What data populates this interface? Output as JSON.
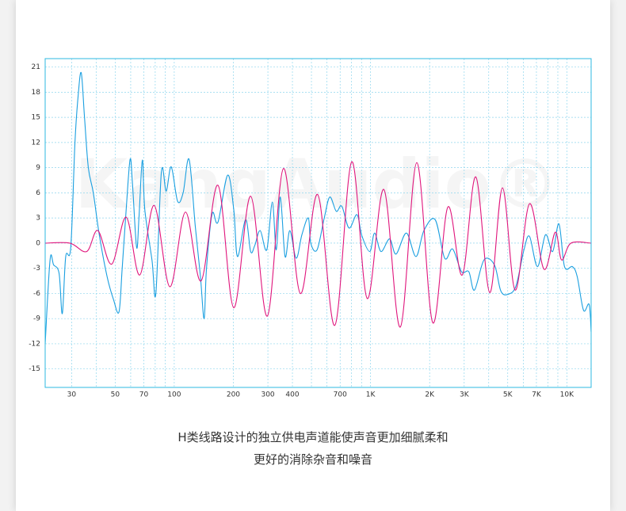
{
  "chart_data": {
    "type": "line",
    "watermark": "KangAudio®",
    "caption": [
      "H类线路设计的独立供电声道能使声音更加细腻柔和",
      "更好的消除杂音和噪音"
    ],
    "log_x": true,
    "grid": true,
    "xlim": [
      22,
      13300
    ],
    "ylim": [
      -17.2,
      22
    ],
    "yticks": [
      21,
      18,
      15,
      12,
      9,
      6,
      3,
      0,
      -3,
      -6,
      -9,
      -12,
      -15
    ],
    "xticks": [
      30,
      50,
      70,
      100,
      200,
      300,
      400,
      700,
      {
        "value": 1000,
        "label": "1K"
      },
      {
        "value": 2000,
        "label": "2K"
      },
      {
        "value": 3000,
        "label": "3K"
      },
      {
        "value": 5000,
        "label": "5K"
      },
      {
        "value": 7000,
        "label": "7K"
      },
      {
        "value": 10000,
        "label": "10K"
      }
    ],
    "xgrid_minor": [
      40,
      60,
      80,
      90,
      500,
      600,
      800,
      900,
      4000,
      6000,
      8000,
      9000
    ],
    "series": [
      {
        "color": "#1a9fe0",
        "x": [
          22,
          23.3,
          24.3,
          25.9,
          26.9,
          28,
          29.7,
          31.2,
          32.4,
          33.6,
          34.9,
          36.5,
          38.7,
          41.5,
          45.5,
          49,
          52.3,
          54.3,
          56.9,
          59.6,
          61.3,
          64.3,
          66.1,
          68.8,
          70.8,
          77,
          80.6,
          86,
          91,
          96.5,
          104,
          111,
          119,
          128,
          136,
          142,
          146,
          156,
          167,
          187,
          201,
          210,
          231,
          245,
          257,
          274,
          296,
          316,
          331,
          347,
          367,
          388,
          418,
          447,
          482,
          496,
          534,
          581,
          620,
          669,
          714,
          777,
          853,
          903,
          991,
          1049,
          1130,
          1251,
          1349,
          1523,
          1704,
          1871,
          2134,
          2387,
          2620,
          2906,
          3167,
          3384,
          3786,
          4278,
          4611,
          5016,
          5507,
          6048,
          6456,
          7090,
          7785,
          8465,
          9118,
          9734,
          10686,
          11298,
          12163,
          12990,
          13300
        ],
        "values": [
          -12,
          -2,
          -2.6,
          -3.6,
          -8.4,
          -1.6,
          -0.5,
          12,
          17.6,
          20.3,
          15,
          9,
          6,
          1,
          -4,
          -6.7,
          -8.2,
          -3,
          4,
          10,
          7,
          -0.5,
          3,
          9.9,
          4,
          -2,
          -6,
          8.5,
          6.2,
          9.1,
          5,
          6,
          10,
          2,
          -4,
          -9,
          -3,
          3.5,
          2.5,
          8.1,
          4,
          -1.6,
          2.8,
          -1,
          -0.3,
          1.5,
          -0.8,
          4.9,
          -0.8,
          5.5,
          -1.6,
          1.5,
          -1.8,
          1,
          3,
          0,
          -0.8,
          3,
          5.5,
          3.8,
          4.4,
          1.8,
          3.4,
          0.9,
          -1,
          1.2,
          -1,
          0.5,
          -1.3,
          1.2,
          -1.6,
          1.5,
          2.8,
          -1.8,
          -0.7,
          -3.4,
          -3.4,
          -5.6,
          -2,
          -2.6,
          -5.7,
          -6.1,
          -5.1,
          -0.8,
          0.8,
          -2.8,
          1,
          -1,
          2.3,
          -2.8,
          -2.8,
          -4,
          -8,
          -7.3,
          -10.6
        ]
      },
      {
        "color": "#e0157c",
        "x": [
          22,
          29.4,
          35.8,
          40.8,
          48,
          56.9,
          66.7,
          79,
          95,
          114,
          137,
          167,
          201,
          245,
          298,
          360,
          439,
          538,
          658,
          802,
          962,
          1169,
          1418,
          1720,
          2076,
          2476,
          2932,
          3436,
          4049,
          4699,
          5455,
          6456,
          7646,
          8730,
          9400,
          10500,
          13300
        ],
        "values": [
          0,
          0,
          -1,
          1.5,
          -2.5,
          3.1,
          -3.8,
          4.5,
          -5.2,
          3.7,
          -4.5,
          6.9,
          -7.7,
          5.6,
          -8.7,
          8.9,
          -6,
          5.8,
          -9.8,
          9.7,
          -6.6,
          6.4,
          -10,
          9.6,
          -9.5,
          4.3,
          -3.8,
          7.9,
          -5.9,
          6.6,
          -5.6,
          4.7,
          -3.1,
          1.3,
          -2,
          0,
          0
        ]
      }
    ]
  }
}
